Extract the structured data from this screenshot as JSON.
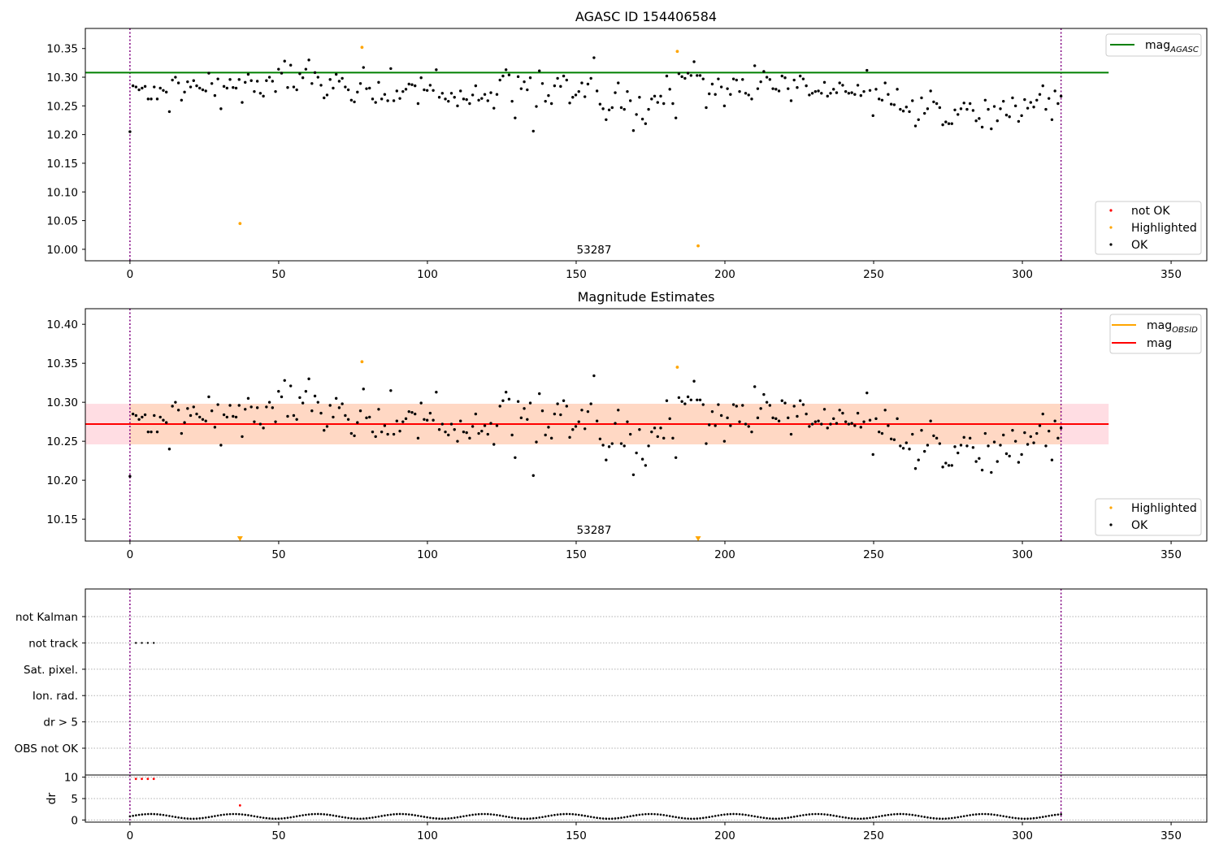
{
  "chart_data": [
    {
      "type": "scatter",
      "title": "AGASC ID 154406584",
      "xlim": [
        -15,
        362
      ],
      "ylim": [
        9.98,
        10.385
      ],
      "xticks": [
        0,
        50,
        100,
        150,
        200,
        250,
        300,
        350
      ],
      "yticks": [
        10.0,
        10.05,
        10.1,
        10.15,
        10.2,
        10.25,
        10.3,
        10.35
      ],
      "ytick_decimals": 2,
      "obsid_label": {
        "text": "53287",
        "x": 156.5,
        "y": 9.99
      },
      "vlines": [
        0,
        313
      ],
      "lines": [
        {
          "name": "mag_AGASC_line",
          "y": 10.308,
          "x0": -15,
          "x1": 329,
          "color": "#008000"
        }
      ],
      "legend_upper": [
        {
          "label": "mag",
          "sub": "AGASC",
          "kind": "line",
          "color": "#008000"
        }
      ],
      "legend_lower": [
        {
          "label": "not OK",
          "kind": "dot",
          "color": "#ff0000"
        },
        {
          "label": "Highlighted",
          "kind": "dot",
          "color": "#ffa500"
        },
        {
          "label": "OK",
          "kind": "dot",
          "color": "#000000"
        }
      ],
      "highlighted": [
        [
          37,
          10.045
        ],
        [
          78,
          10.352
        ],
        [
          184,
          10.345
        ],
        [
          191,
          10.006
        ]
      ],
      "series_ref": "mag_ok"
    },
    {
      "type": "scatter",
      "title": "Magnitude Estimates",
      "xlim": [
        -15,
        362
      ],
      "ylim": [
        10.122,
        10.42
      ],
      "xticks": [
        0,
        50,
        100,
        150,
        200,
        250,
        300,
        350
      ],
      "yticks": [
        10.15,
        10.2,
        10.25,
        10.3,
        10.35,
        10.4
      ],
      "ytick_decimals": 2,
      "obsid_label": {
        "text": "53287",
        "x": 156.5,
        "y": 10.132
      },
      "vlines": [
        0,
        313
      ],
      "band_outer": {
        "y0": 10.246,
        "y1": 10.298,
        "color": "#ffdde3"
      },
      "band_inner": {
        "y0": 10.246,
        "y1": 10.298,
        "x0": 0,
        "x1": 313,
        "color": "#ffd8c4"
      },
      "lines": [
        {
          "name": "mag_line",
          "y": 10.272,
          "x0": -15,
          "x1": 329,
          "color": "#ff0000"
        }
      ],
      "legend_upper": [
        {
          "label": "mag",
          "sub": "OBSID",
          "kind": "line",
          "color": "#ffa500"
        },
        {
          "label": "mag",
          "kind": "line",
          "color": "#ff0000"
        }
      ],
      "legend_lower": [
        {
          "label": "Highlighted",
          "kind": "dot",
          "color": "#ffa500"
        },
        {
          "label": "OK",
          "kind": "dot",
          "color": "#000000"
        }
      ],
      "highlighted": [
        [
          78,
          10.352
        ],
        [
          184,
          10.345
        ]
      ],
      "offscale_markers": [
        [
          37,
          10.125
        ],
        [
          191,
          10.125
        ]
      ],
      "series_ref": "mag_ok"
    },
    {
      "type": "scatter",
      "title": "",
      "xlim": [
        -15,
        362
      ],
      "flag_categories": [
        "not Kalman",
        "not track",
        "Sat. pixel.",
        "Ion. rad.",
        "dr > 5",
        "OBS not OK"
      ],
      "flag_points": [
        {
          "category": "not track",
          "x": [
            2,
            4,
            6,
            8
          ]
        }
      ],
      "vlines": [
        0,
        313
      ]
    },
    {
      "type": "scatter",
      "title": "",
      "ylabel": "dr",
      "xlim": [
        -15,
        362
      ],
      "ylim": [
        -0.5,
        10.5
      ],
      "xticks": [
        0,
        50,
        100,
        150,
        200,
        250,
        300,
        350
      ],
      "yticks": [
        0,
        5,
        10
      ],
      "vlines": [
        0,
        313
      ],
      "dr_not_ok": [
        [
          2,
          9.6
        ],
        [
          4,
          9.6
        ],
        [
          6,
          9.6
        ],
        [
          8,
          9.6
        ],
        [
          37,
          3.4
        ]
      ],
      "dr_wave": {
        "x0": 0,
        "x1": 313,
        "base": 0.85,
        "amp": 0.55,
        "period": 28
      }
    }
  ],
  "series": {
    "mag_ok": {
      "x_start": 0,
      "x_end": 313,
      "values": [
        10.205,
        10.285,
        10.283,
        10.278,
        10.281,
        10.284,
        10.262,
        10.262,
        10.283,
        10.262,
        10.281,
        10.277,
        10.274,
        10.24,
        10.295,
        10.3,
        10.29,
        10.26,
        10.274,
        10.292,
        10.283,
        10.294,
        10.285,
        10.281,
        10.278,
        10.276,
        10.307,
        10.289,
        10.268,
        10.297,
        10.245,
        10.284,
        10.281,
        10.296,
        10.282,
        10.281,
        10.296,
        10.256,
        10.291,
        10.305,
        10.294,
        10.275,
        10.293,
        10.272,
        10.267,
        10.294,
        10.3,
        10.293,
        10.275,
        10.314,
        10.307,
        10.328,
        10.282,
        10.321,
        10.283,
        10.278,
        10.306,
        10.299,
        10.314,
        10.33,
        10.289,
        10.308,
        10.3,
        10.286,
        10.264,
        10.269,
        10.296,
        10.281,
        10.305,
        10.293,
        10.298,
        10.283,
        10.278,
        10.26,
        10.257,
        10.274,
        10.289,
        10.317,
        10.28,
        10.281,
        10.262,
        10.256,
        10.291,
        10.262,
        10.27,
        10.259,
        10.315,
        10.259,
        10.276,
        10.263,
        10.275,
        10.279,
        10.288,
        10.287,
        10.285,
        10.254,
        10.299,
        10.278,
        10.277,
        10.286,
        10.277,
        10.313,
        10.265,
        10.272,
        10.262,
        10.258,
        10.272,
        10.265,
        10.25,
        10.276,
        10.262,
        10.261,
        10.254,
        10.269,
        10.285,
        10.26,
        10.263,
        10.27,
        10.259,
        10.273,
        10.246,
        10.27,
        10.295,
        10.302,
        10.313,
        10.304,
        10.258,
        10.229,
        10.301,
        10.28,
        10.292,
        10.278,
        10.299,
        10.206,
        10.249,
        10.311,
        10.289,
        10.258,
        10.268,
        10.254,
        10.285,
        10.298,
        10.284,
        10.302,
        10.295,
        10.255,
        10.265,
        10.269,
        10.275,
        10.29,
        10.266,
        10.288,
        10.298,
        10.334,
        10.276,
        10.253,
        10.245,
        10.226,
        10.243,
        10.247,
        10.273,
        10.29,
        10.247,
        10.244,
        10.275,
        10.259,
        10.207,
        10.235,
        10.265,
        10.227,
        10.219,
        10.244,
        10.262,
        10.267,
        10.256,
        10.267,
        10.254,
        10.302,
        10.279,
        10.254,
        10.229,
        10.306,
        10.301,
        10.298,
        10.307,
        10.303,
        10.327,
        10.303,
        10.303,
        10.297,
        10.247,
        10.271,
        10.288,
        10.27,
        10.297,
        10.283,
        10.25,
        10.28,
        10.27,
        10.297,
        10.295,
        10.275,
        10.296,
        10.272,
        10.269,
        10.262,
        10.32,
        10.28,
        10.292,
        10.31,
        10.3,
        10.296,
        10.28,
        10.279,
        10.276,
        10.302,
        10.299,
        10.28,
        10.259,
        10.295,
        10.282,
        10.302,
        10.297,
        10.285,
        10.269,
        10.272,
        10.275,
        10.276,
        10.272,
        10.291,
        10.267,
        10.272,
        10.279,
        10.273,
        10.29,
        10.286,
        10.275,
        10.272,
        10.273,
        10.27,
        10.286,
        10.268,
        10.275,
        10.312,
        10.277,
        10.233,
        10.279,
        10.262,
        10.26,
        10.29,
        10.27,
        10.253,
        10.252,
        10.279,
        10.244,
        10.241,
        10.248,
        10.24,
        10.259,
        10.215,
        10.226,
        10.264,
        10.237,
        10.245,
        10.276,
        10.257,
        10.254,
        10.247,
        10.217,
        10.222,
        10.219,
        10.219,
        10.243,
        10.235,
        10.245,
        10.255,
        10.244,
        10.254,
        10.242,
        10.224,
        10.228,
        10.213,
        10.26,
        10.244,
        10.21,
        10.249,
        10.224,
        10.245,
        10.258,
        10.234,
        10.231,
        10.264,
        10.25,
        10.223,
        10.233,
        10.261,
        10.246,
        10.256,
        10.248,
        10.26,
        10.27,
        10.285,
        10.244,
        10.263,
        10.226,
        10.276,
        10.254,
        10.267
      ]
    }
  }
}
